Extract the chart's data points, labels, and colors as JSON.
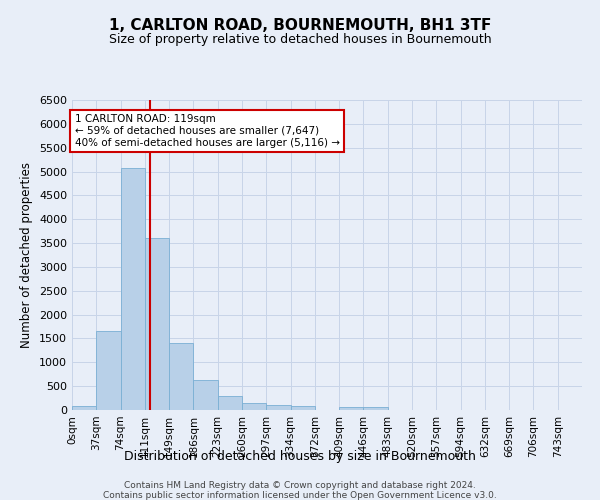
{
  "title": "1, CARLTON ROAD, BOURNEMOUTH, BH1 3TF",
  "subtitle": "Size of property relative to detached houses in Bournemouth",
  "xlabel": "Distribution of detached houses by size in Bournemouth",
  "ylabel": "Number of detached properties",
  "footer_line1": "Contains HM Land Registry data © Crown copyright and database right 2024.",
  "footer_line2": "Contains public sector information licensed under the Open Government Licence v3.0.",
  "categories": [
    "0sqm",
    "37sqm",
    "74sqm",
    "111sqm",
    "149sqm",
    "186sqm",
    "223sqm",
    "260sqm",
    "297sqm",
    "334sqm",
    "372sqm",
    "409sqm",
    "446sqm",
    "483sqm",
    "520sqm",
    "557sqm",
    "594sqm",
    "632sqm",
    "669sqm",
    "706sqm",
    "743sqm"
  ],
  "values": [
    75,
    1650,
    5075,
    3600,
    1400,
    620,
    290,
    150,
    100,
    75,
    0,
    60,
    60,
    0,
    0,
    0,
    0,
    0,
    0,
    0,
    0
  ],
  "bar_color": "#b8d0e8",
  "bar_edge_color": "#7aafd4",
  "vline_x_index": 3,
  "vline_color": "#cc0000",
  "ylim": [
    0,
    6500
  ],
  "yticks": [
    0,
    500,
    1000,
    1500,
    2000,
    2500,
    3000,
    3500,
    4000,
    4500,
    5000,
    5500,
    6000,
    6500
  ],
  "annotation_line1": "1 CARLTON ROAD: 119sqm",
  "annotation_line2": "← 59% of detached houses are smaller (7,647)",
  "annotation_line3": "40% of semi-detached houses are larger (5,116) →",
  "annotation_box_color": "#ffffff",
  "annotation_border_color": "#cc0000",
  "grid_color": "#c8d4e8",
  "bg_color": "#e8eef8",
  "bin_width": 37,
  "title_fontsize": 11,
  "subtitle_fontsize": 9
}
